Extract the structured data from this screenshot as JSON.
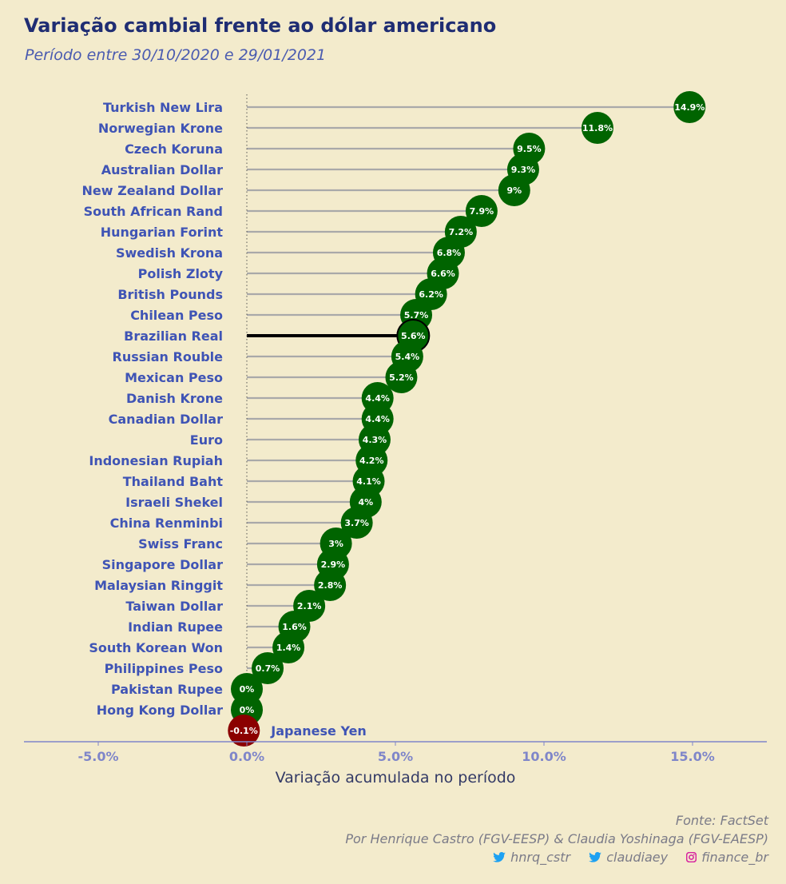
{
  "title": "Variação cambial frente ao dólar americano",
  "subtitle": "Período entre 30/10/2020 e 29/01/2021",
  "footer": {
    "source": "Fonte: FactSet",
    "authors": "Por Henrique Castro (FGV-EESP) & Claudia Yoshinaga (FGV-EAESP)",
    "social": [
      {
        "icon": "twitter-icon",
        "handle": "hnrq_cstr"
      },
      {
        "icon": "twitter-icon",
        "handle": "claudiaey"
      },
      {
        "icon": "instagram-icon",
        "handle": "finance_br"
      }
    ]
  },
  "colors": {
    "positive": "#006400",
    "negative": "#8b0000",
    "highlight_line": "#000000",
    "stem": "#a9a9a9",
    "label_text": "#3f54b5"
  },
  "chart_data": {
    "type": "lollipop",
    "xlabel": "Variação acumulada no período",
    "xlim": [
      -7.5,
      17.5
    ],
    "x_ticks": [
      -5,
      0,
      5,
      10,
      15
    ],
    "x_tick_labels": [
      "-5.0%",
      "0.0%",
      "5.0%",
      "10.0%",
      "15.0%"
    ],
    "highlight": "Brazilian Real",
    "categories": [
      "Turkish New Lira",
      "Norwegian Krone",
      "Czech Koruna",
      "Australian Dollar",
      "New Zealand Dollar",
      "South African Rand",
      "Hungarian Forint",
      "Swedish Krona",
      "Polish Zloty",
      "British Pounds",
      "Chilean Peso",
      "Brazilian Real",
      "Russian Rouble",
      "Mexican Peso",
      "Danish Krone",
      "Canadian Dollar",
      "Euro",
      "Indonesian Rupiah",
      "Thailand Baht",
      "Israeli Shekel",
      "China Renminbi",
      "Swiss Franc",
      "Singapore Dollar",
      "Malaysian Ringgit",
      "Taiwan Dollar",
      "Indian Rupee",
      "South Korean Won",
      "Philippines Peso",
      "Pakistan Rupee",
      "Hong Kong Dollar",
      "Japanese Yen"
    ],
    "values": [
      14.9,
      11.8,
      9.5,
      9.3,
      9,
      7.9,
      7.2,
      6.8,
      6.6,
      6.2,
      5.7,
      5.6,
      5.4,
      5.2,
      4.4,
      4.4,
      4.3,
      4.2,
      4.1,
      4,
      3.7,
      3,
      2.9,
      2.8,
      2.1,
      1.6,
      1.4,
      0.7,
      0,
      0,
      -0.1
    ],
    "value_labels": [
      "14.9%",
      "11.8%",
      "9.5%",
      "9.3%",
      "9%",
      "7.9%",
      "7.2%",
      "6.8%",
      "6.6%",
      "6.2%",
      "5.7%",
      "5.6%",
      "5.4%",
      "5.2%",
      "4.4%",
      "4.4%",
      "4.3%",
      "4.2%",
      "4.1%",
      "4%",
      "3.7%",
      "3%",
      "2.9%",
      "2.8%",
      "2.1%",
      "1.6%",
      "1.4%",
      "0.7%",
      "0%",
      "0%",
      "-0.1%"
    ]
  }
}
